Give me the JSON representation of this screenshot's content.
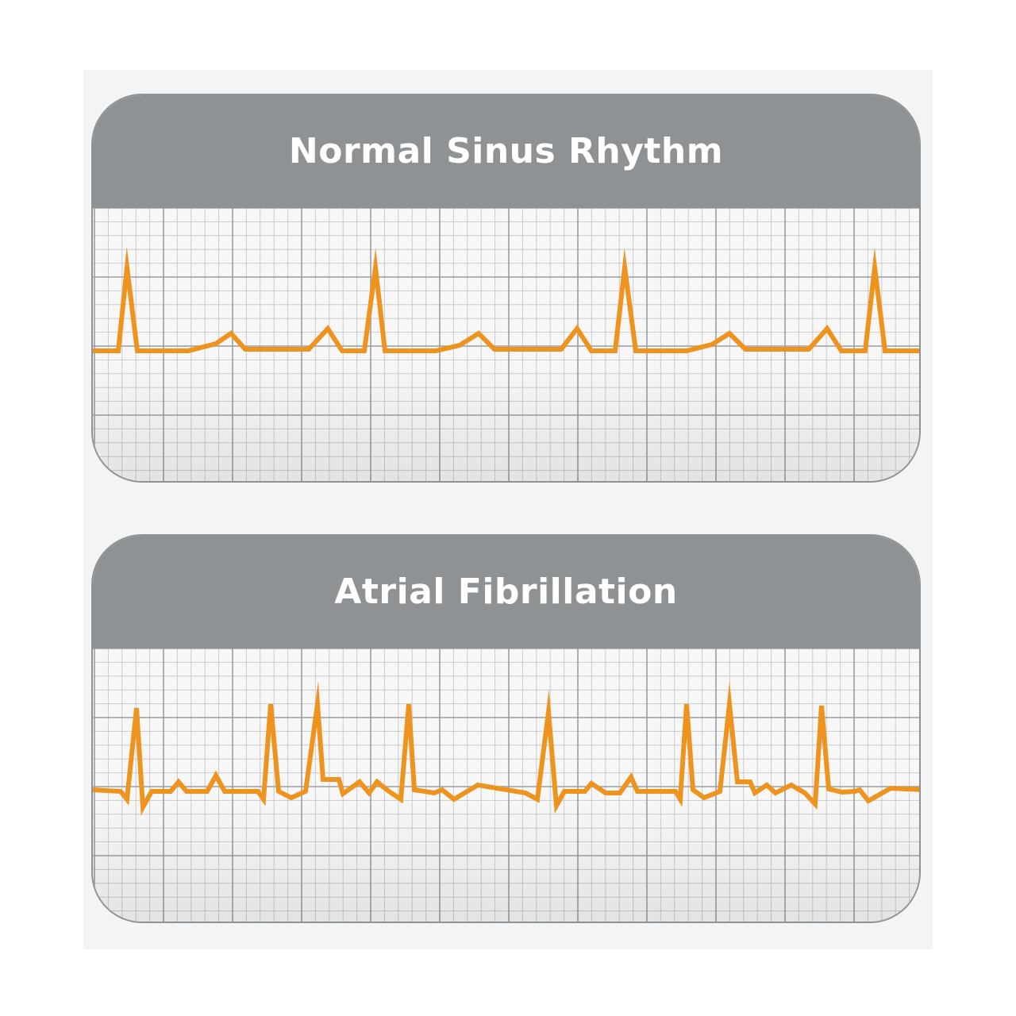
{
  "colors": {
    "header": "#8f9294",
    "title_text": "#ffffff",
    "grid_major": "#9a9ea1",
    "grid_minor": "#c9cccf",
    "paper": "#f7f7f7",
    "trace": "#ee931e",
    "backdrop": "#f3f4f5"
  },
  "panels": [
    {
      "title": "Normal Sinus Rhythm",
      "icon": "ecg-trace-regular"
    },
    {
      "title": "Atrial Fibrillation",
      "icon": "ecg-trace-irregular"
    }
  ]
}
